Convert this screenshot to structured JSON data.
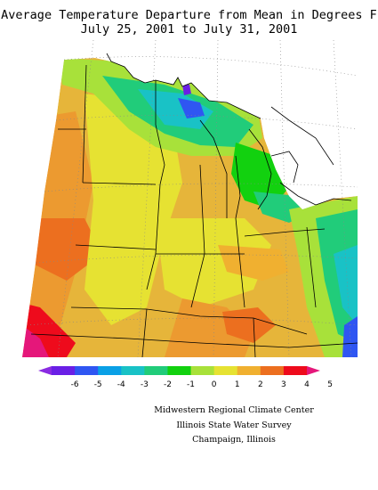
{
  "title_line1": "Average Temperature Departure from Mean in Degrees F",
  "title_line2": "July 25, 2001  to July 31, 2001",
  "legend": {
    "ticks": [
      "-6",
      "-5",
      "-4",
      "-3",
      "-2",
      "-1",
      "0",
      "1",
      "2",
      "3",
      "4",
      "5"
    ],
    "colors": [
      "#8a2be2",
      "#6a1fe6",
      "#2f56f2",
      "#0aa0e6",
      "#19c2c6",
      "#21cc7a",
      "#12d10f",
      "#a8e13a",
      "#e6e232",
      "#f0b030",
      "#ec6f1f",
      "#ee0b1c",
      "#e5177a"
    ]
  },
  "credits": {
    "line1": "Midwestern Regional Climate Center",
    "line2": "Illinois State Water Survey",
    "line3": "Champaign, Illinois"
  }
}
